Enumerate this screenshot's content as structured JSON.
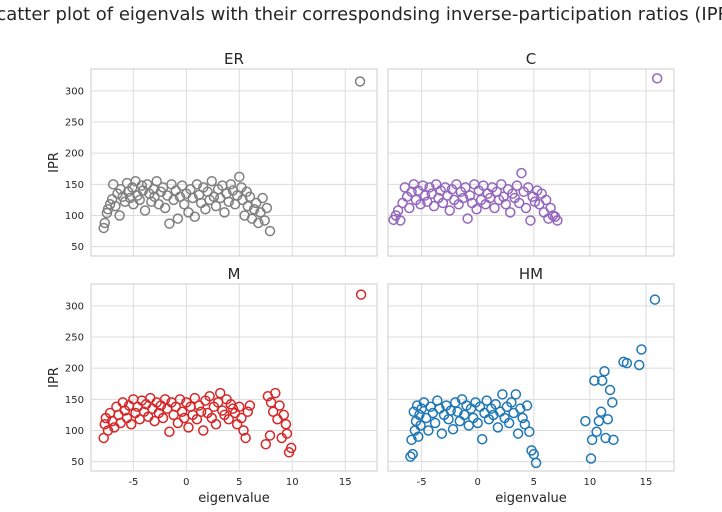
{
  "figure": {
    "title": "Scatter plot of eigenvals with their correspondsing inverse-participation ratios (IPR)"
  },
  "chart_data": [
    {
      "type": "scatter",
      "title": "ER",
      "xlabel": "",
      "ylabel": "IPR",
      "xlim": [
        -9,
        18
      ],
      "ylim": [
        35,
        335
      ],
      "xticks": [],
      "yticks": [
        50,
        100,
        150,
        200,
        250,
        300
      ],
      "grid": true,
      "color": "#7f7f7f",
      "points": [
        [
          -7.8,
          80
        ],
        [
          -7.7,
          88
        ],
        [
          -7.5,
          104
        ],
        [
          -7.4,
          110
        ],
        [
          -7.2,
          118
        ],
        [
          -7,
          126
        ],
        [
          -6.9,
          150
        ],
        [
          -6.7,
          115
        ],
        [
          -6.5,
          135
        ],
        [
          -6.3,
          100
        ],
        [
          -6.2,
          142
        ],
        [
          -6,
          130
        ],
        [
          -5.8,
          122
        ],
        [
          -5.6,
          152
        ],
        [
          -5.5,
          138
        ],
        [
          -5.3,
          128
        ],
        [
          -5.1,
          145
        ],
        [
          -5,
          118
        ],
        [
          -4.8,
          155
        ],
        [
          -4.6,
          132
        ],
        [
          -4.4,
          125
        ],
        [
          -4.2,
          148
        ],
        [
          -4.1,
          140
        ],
        [
          -3.9,
          108
        ],
        [
          -3.7,
          150
        ],
        [
          -3.5,
          135
        ],
        [
          -3.3,
          122
        ],
        [
          -3.1,
          142
        ],
        [
          -3,
          130
        ],
        [
          -2.8,
          155
        ],
        [
          -2.6,
          118
        ],
        [
          -2.4,
          138
        ],
        [
          -2.2,
          145
        ],
        [
          -2,
          112
        ],
        [
          -1.8,
          132
        ],
        [
          -1.6,
          87
        ],
        [
          -1.4,
          150
        ],
        [
          -1.2,
          125
        ],
        [
          -1,
          140
        ],
        [
          -0.8,
          95
        ],
        [
          -0.6,
          130
        ],
        [
          -0.4,
          148
        ],
        [
          -0.2,
          118
        ],
        [
          0,
          135
        ],
        [
          0.2,
          105
        ],
        [
          0.4,
          142
        ],
        [
          0.6,
          128
        ],
        [
          0.8,
          98
        ],
        [
          1,
          150
        ],
        [
          1.2,
          133
        ],
        [
          1.4,
          120
        ],
        [
          1.6,
          145
        ],
        [
          1.8,
          110
        ],
        [
          2,
          138
        ],
        [
          2.2,
          125
        ],
        [
          2.4,
          155
        ],
        [
          2.6,
          130
        ],
        [
          2.8,
          115
        ],
        [
          3,
          142
        ],
        [
          3.2,
          128
        ],
        [
          3.4,
          148
        ],
        [
          3.6,
          105
        ],
        [
          3.8,
          135
        ],
        [
          4,
          122
        ],
        [
          4.2,
          150
        ],
        [
          4.4,
          140
        ],
        [
          4.6,
          118
        ],
        [
          4.8,
          132
        ],
        [
          5,
          162
        ],
        [
          5.2,
          145
        ],
        [
          5.3,
          125
        ],
        [
          5.5,
          100
        ],
        [
          5.7,
          138
        ],
        [
          5.8,
          115
        ],
        [
          6,
          130
        ],
        [
          6.2,
          95
        ],
        [
          6.4,
          110
        ],
        [
          6.6,
          120
        ],
        [
          6.8,
          88
        ],
        [
          7,
          105
        ],
        [
          7.2,
          128
        ],
        [
          7.4,
          92
        ],
        [
          7.6,
          112
        ],
        [
          7.9,
          75
        ],
        [
          16.4,
          315
        ]
      ]
    },
    {
      "type": "scatter",
      "title": "C",
      "xlabel": "",
      "ylabel": "",
      "xlim": [
        -8,
        17.5
      ],
      "ylim": [
        35,
        335
      ],
      "xticks": [],
      "yticks": [],
      "grid": true,
      "color": "#9467bd",
      "points": [
        [
          -7.5,
          93
        ],
        [
          -7.3,
          100
        ],
        [
          -7.1,
          108
        ],
        [
          -6.9,
          92
        ],
        [
          -6.7,
          120
        ],
        [
          -6.5,
          145
        ],
        [
          -6.3,
          130
        ],
        [
          -6.1,
          112
        ],
        [
          -5.9,
          138
        ],
        [
          -5.7,
          150
        ],
        [
          -5.5,
          125
        ],
        [
          -5.3,
          140
        ],
        [
          -5.1,
          118
        ],
        [
          -4.9,
          148
        ],
        [
          -4.7,
          132
        ],
        [
          -4.5,
          122
        ],
        [
          -4.3,
          145
        ],
        [
          -4.1,
          135
        ],
        [
          -3.9,
          115
        ],
        [
          -3.7,
          150
        ],
        [
          -3.5,
          128
        ],
        [
          -3.3,
          140
        ],
        [
          -3.1,
          120
        ],
        [
          -2.9,
          145
        ],
        [
          -2.7,
          132
        ],
        [
          -2.5,
          108
        ],
        [
          -2.3,
          142
        ],
        [
          -2.1,
          125
        ],
        [
          -1.9,
          150
        ],
        [
          -1.7,
          118
        ],
        [
          -1.5,
          138
        ],
        [
          -1.3,
          128
        ],
        [
          -1.1,
          145
        ],
        [
          -0.9,
          95
        ],
        [
          -0.7,
          132
        ],
        [
          -0.5,
          120
        ],
        [
          -0.3,
          150
        ],
        [
          -0.1,
          110
        ],
        [
          0.1,
          140
        ],
        [
          0.3,
          125
        ],
        [
          0.5,
          148
        ],
        [
          0.7,
          118
        ],
        [
          0.9,
          135
        ],
        [
          1.1,
          128
        ],
        [
          1.3,
          145
        ],
        [
          1.5,
          112
        ],
        [
          1.7,
          138
        ],
        [
          1.9,
          125
        ],
        [
          2.1,
          150
        ],
        [
          2.3,
          130
        ],
        [
          2.5,
          118
        ],
        [
          2.7,
          142
        ],
        [
          2.9,
          105
        ],
        [
          3.1,
          135
        ],
        [
          3.3,
          128
        ],
        [
          3.5,
          148
        ],
        [
          3.7,
          120
        ],
        [
          3.9,
          168
        ],
        [
          4.1,
          138
        ],
        [
          4.3,
          112
        ],
        [
          4.5,
          145
        ],
        [
          4.7,
          92
        ],
        [
          4.9,
          130
        ],
        [
          5.1,
          122
        ],
        [
          5.3,
          140
        ],
        [
          5.5,
          118
        ],
        [
          5.7,
          135
        ],
        [
          5.9,
          105
        ],
        [
          6.1,
          125
        ],
        [
          6.3,
          95
        ],
        [
          6.5,
          112
        ],
        [
          6.7,
          100
        ],
        [
          6.9,
          98
        ],
        [
          7.1,
          92
        ],
        [
          16,
          320
        ]
      ]
    },
    {
      "type": "scatter",
      "title": "M",
      "xlabel": "eigenvalue",
      "ylabel": "IPR",
      "xlim": [
        -9,
        18
      ],
      "ylim": [
        35,
        335
      ],
      "xticks": [
        -5,
        0,
        5,
        10,
        15
      ],
      "yticks": [
        50,
        100,
        150,
        200,
        250,
        300
      ],
      "grid": true,
      "color": "#d62728",
      "points": [
        [
          -7.8,
          88
        ],
        [
          -7.7,
          110
        ],
        [
          -7.6,
          120
        ],
        [
          -7.4,
          100
        ],
        [
          -7.2,
          128
        ],
        [
          -7,
          115
        ],
        [
          -6.8,
          105
        ],
        [
          -6.6,
          138
        ],
        [
          -6.4,
          125
        ],
        [
          -6.2,
          112
        ],
        [
          -6,
          145
        ],
        [
          -5.8,
          132
        ],
        [
          -5.6,
          120
        ],
        [
          -5.4,
          140
        ],
        [
          -5.2,
          110
        ],
        [
          -5,
          150
        ],
        [
          -4.8,
          128
        ],
        [
          -4.6,
          138
        ],
        [
          -4.4,
          118
        ],
        [
          -4.2,
          148
        ],
        [
          -4,
          130
        ],
        [
          -3.8,
          142
        ],
        [
          -3.6,
          122
        ],
        [
          -3.4,
          152
        ],
        [
          -3.2,
          135
        ],
        [
          -3,
          115
        ],
        [
          -2.8,
          145
        ],
        [
          -2.6,
          128
        ],
        [
          -2.4,
          140
        ],
        [
          -2.2,
          120
        ],
        [
          -2,
          150
        ],
        [
          -1.8,
          135
        ],
        [
          -1.6,
          98
        ],
        [
          -1.4,
          145
        ],
        [
          -1.2,
          125
        ],
        [
          -1,
          138
        ],
        [
          -0.8,
          112
        ],
        [
          -0.6,
          150
        ],
        [
          -0.4,
          130
        ],
        [
          -0.2,
          120
        ],
        [
          0,
          145
        ],
        [
          0.2,
          105
        ],
        [
          0.4,
          138
        ],
        [
          0.6,
          125
        ],
        [
          0.8,
          152
        ],
        [
          1,
          118
        ],
        [
          1.2,
          140
        ],
        [
          1.4,
          130
        ],
        [
          1.6,
          100
        ],
        [
          1.8,
          148
        ],
        [
          2,
          128
        ],
        [
          2.2,
          155
        ],
        [
          2.4,
          120
        ],
        [
          2.6,
          138
        ],
        [
          2.8,
          110
        ],
        [
          3,
          145
        ],
        [
          3.2,
          160
        ],
        [
          3.4,
          132
        ],
        [
          3.6,
          125
        ],
        [
          3.8,
          150
        ],
        [
          4,
          118
        ],
        [
          4.2,
          142
        ],
        [
          4.4,
          135
        ],
        [
          4.6,
          128
        ],
        [
          4.8,
          110
        ],
        [
          5,
          138
        ],
        [
          5.2,
          120
        ],
        [
          5.4,
          100
        ],
        [
          5.6,
          88
        ],
        [
          5.8,
          130
        ],
        [
          6,
          140
        ],
        [
          7.5,
          78
        ],
        [
          7.7,
          155
        ],
        [
          7.9,
          92
        ],
        [
          8,
          145
        ],
        [
          8.2,
          130
        ],
        [
          8.4,
          160
        ],
        [
          8.6,
          118
        ],
        [
          8.8,
          140
        ],
        [
          9,
          88
        ],
        [
          9.2,
          125
        ],
        [
          9.4,
          110
        ],
        [
          9.5,
          95
        ],
        [
          9.7,
          65
        ],
        [
          9.9,
          72
        ],
        [
          16.5,
          318
        ]
      ]
    },
    {
      "type": "scatter",
      "title": "HM",
      "xlabel": "eigenvalue",
      "ylabel": "",
      "xlim": [
        -8,
        17.5
      ],
      "ylim": [
        35,
        335
      ],
      "xticks": [
        -5,
        0,
        5,
        10,
        15
      ],
      "yticks": [],
      "grid": true,
      "color": "#1f77b4",
      "points": [
        [
          -6,
          58
        ],
        [
          -5.9,
          85
        ],
        [
          -5.8,
          62
        ],
        [
          -5.7,
          130
        ],
        [
          -5.6,
          100
        ],
        [
          -5.5,
          115
        ],
        [
          -5.4,
          140
        ],
        [
          -5.3,
          90
        ],
        [
          -5.2,
          125
        ],
        [
          -5.1,
          108
        ],
        [
          -5,
          135
        ],
        [
          -4.8,
          145
        ],
        [
          -4.6,
          120
        ],
        [
          -4.4,
          100
        ],
        [
          -4.2,
          138
        ],
        [
          -4,
          128
        ],
        [
          -3.8,
          112
        ],
        [
          -3.6,
          148
        ],
        [
          -3.4,
          135
        ],
        [
          -3.2,
          95
        ],
        [
          -3,
          125
        ],
        [
          -2.8,
          140
        ],
        [
          -2.6,
          118
        ],
        [
          -2.4,
          132
        ],
        [
          -2.2,
          102
        ],
        [
          -2,
          145
        ],
        [
          -1.8,
          130
        ],
        [
          -1.6,
          115
        ],
        [
          -1.4,
          150
        ],
        [
          -1.2,
          125
        ],
        [
          -1,
          140
        ],
        [
          -0.8,
          108
        ],
        [
          -0.6,
          135
        ],
        [
          -0.4,
          120
        ],
        [
          -0.2,
          145
        ],
        [
          0,
          112
        ],
        [
          0.2,
          138
        ],
        [
          0.4,
          86
        ],
        [
          0.6,
          128
        ],
        [
          0.8,
          148
        ],
        [
          1,
          118
        ],
        [
          1.2,
          135
        ],
        [
          1.4,
          125
        ],
        [
          1.6,
          142
        ],
        [
          1.8,
          105
        ],
        [
          2,
          130
        ],
        [
          2.2,
          158
        ],
        [
          2.4,
          120
        ],
        [
          2.6,
          138
        ],
        [
          2.8,
          112
        ],
        [
          3,
          145
        ],
        [
          3.2,
          128
        ],
        [
          3.4,
          158
        ],
        [
          3.6,
          95
        ],
        [
          3.8,
          135
        ],
        [
          4,
          120
        ],
        [
          4.2,
          110
        ],
        [
          4.4,
          140
        ],
        [
          4.6,
          98
        ],
        [
          4.8,
          68
        ],
        [
          5,
          62
        ],
        [
          5.2,
          48
        ],
        [
          9.6,
          115
        ],
        [
          10.1,
          55
        ],
        [
          10.2,
          85
        ],
        [
          10.4,
          180
        ],
        [
          10.6,
          98
        ],
        [
          10.8,
          115
        ],
        [
          11,
          130
        ],
        [
          11.1,
          180
        ],
        [
          11.3,
          195
        ],
        [
          11.4,
          88
        ],
        [
          11.6,
          118
        ],
        [
          11.8,
          165
        ],
        [
          12,
          145
        ],
        [
          12.1,
          85
        ],
        [
          13,
          210
        ],
        [
          13.3,
          208
        ],
        [
          14.4,
          205
        ],
        [
          14.6,
          230
        ],
        [
          15.8,
          310
        ]
      ]
    }
  ]
}
